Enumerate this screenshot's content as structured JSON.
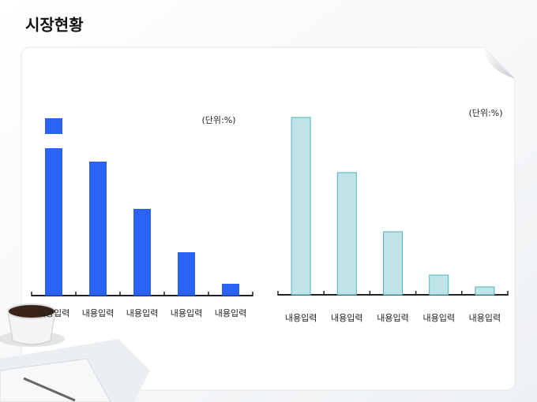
{
  "title": "시장현황",
  "chart_data": [
    {
      "type": "bar",
      "unit": "(단위:%)",
      "categories": [
        "내용입력",
        "내용입력",
        "내용입력",
        "내용입력",
        "내용입력"
      ],
      "values": [
        45,
        34,
        22,
        11,
        3
      ],
      "color": "#2a63f5",
      "axis_break": true
    },
    {
      "type": "bar",
      "unit": "(단위:%)",
      "categories": [
        "내용입력",
        "내용입력",
        "내용입력",
        "내용입력",
        "내용입력"
      ],
      "values": [
        45,
        31,
        16,
        5,
        2
      ],
      "color": "#bfe3e7",
      "edge_color": "#4fb3c4"
    }
  ]
}
